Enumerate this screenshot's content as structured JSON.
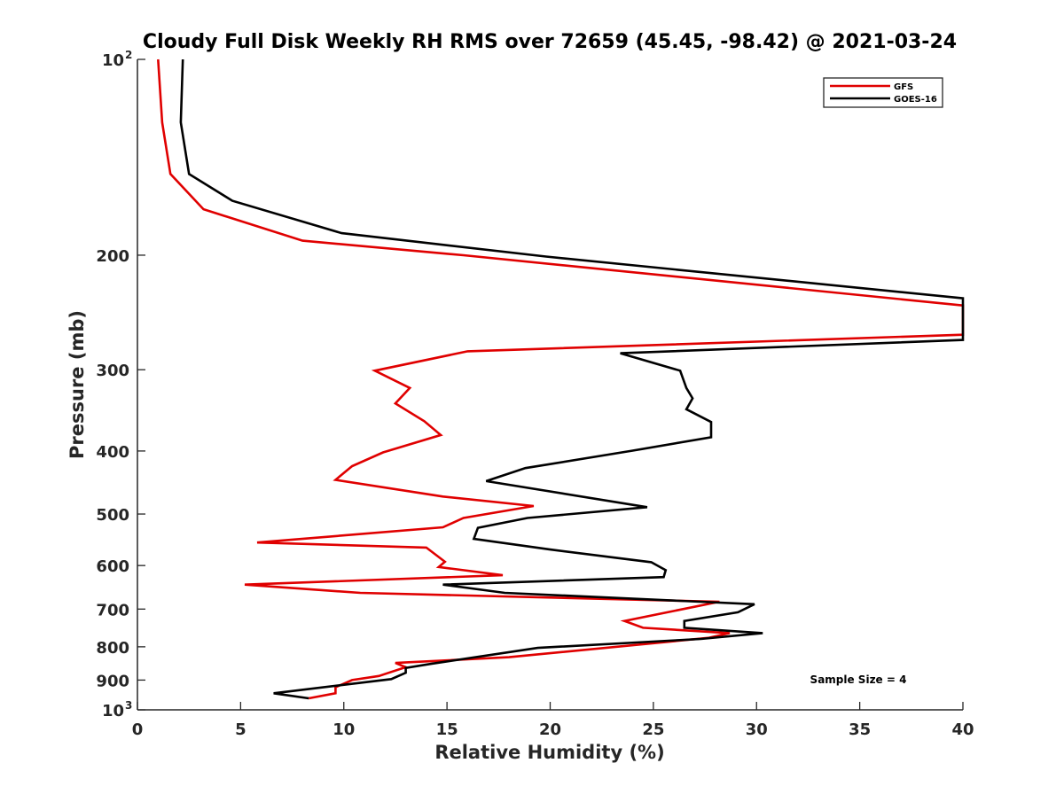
{
  "chart_data": {
    "type": "line",
    "title": "Cloudy Full Disk Weekly RH RMS over 72659 (45.45, -98.42) @ 2021-03-24",
    "xlabel": "Relative Humidity (%)",
    "ylabel": "Pressure (mb)",
    "xlim": [
      0,
      40
    ],
    "ylim": [
      100,
      1000
    ],
    "y_scale": "log",
    "y_reversed": true,
    "grid": false,
    "legend_position": "top-right",
    "x_ticks": [
      {
        "value": 0,
        "label": "0"
      },
      {
        "value": 5,
        "label": "5"
      },
      {
        "value": 10,
        "label": "10"
      },
      {
        "value": 15,
        "label": "15"
      },
      {
        "value": 20,
        "label": "20"
      },
      {
        "value": 25,
        "label": "25"
      },
      {
        "value": 30,
        "label": "30"
      },
      {
        "value": 35,
        "label": "35"
      },
      {
        "value": 40,
        "label": "40"
      }
    ],
    "y_ticks": [
      {
        "value": 100,
        "label": "10",
        "sup": "2"
      },
      {
        "value": 200,
        "label": "200"
      },
      {
        "value": 300,
        "label": "300"
      },
      {
        "value": 400,
        "label": "400"
      },
      {
        "value": 500,
        "label": "500"
      },
      {
        "value": 600,
        "label": "600"
      },
      {
        "value": 700,
        "label": "700"
      },
      {
        "value": 800,
        "label": "800"
      },
      {
        "value": 900,
        "label": "900"
      },
      {
        "value": 1000,
        "label": "10",
        "sup": "3"
      }
    ],
    "series": [
      {
        "name": "GFS",
        "color": "#e00000",
        "points": [
          [
            1.0,
            100
          ],
          [
            1.2,
            125
          ],
          [
            1.6,
            150
          ],
          [
            3.2,
            170
          ],
          [
            8.0,
            190
          ],
          [
            15.8,
            200
          ],
          [
            40.0,
            239
          ],
          [
            40.0,
            265
          ],
          [
            16.0,
            281
          ],
          [
            11.5,
            301
          ],
          [
            13.2,
            320
          ],
          [
            12.5,
            338
          ],
          [
            13.9,
            360
          ],
          [
            14.7,
            378
          ],
          [
            11.9,
            402
          ],
          [
            10.4,
            422
          ],
          [
            9.6,
            443
          ],
          [
            14.8,
            470
          ],
          [
            19.2,
            486
          ],
          [
            15.8,
            507
          ],
          [
            14.8,
            524
          ],
          [
            5.8,
            553
          ],
          [
            14.0,
            563
          ],
          [
            14.9,
            592
          ],
          [
            14.6,
            603
          ],
          [
            17.7,
            621
          ],
          [
            5.2,
            642
          ],
          [
            10.8,
            661
          ],
          [
            28.2,
            682
          ],
          [
            23.6,
            730
          ],
          [
            24.5,
            748
          ],
          [
            28.7,
            762
          ],
          [
            27.7,
            775
          ],
          [
            18.0,
            830
          ],
          [
            12.5,
            847
          ],
          [
            13.0,
            860
          ],
          [
            11.7,
            887
          ],
          [
            10.4,
            900
          ],
          [
            9.6,
            923
          ],
          [
            9.6,
            943
          ],
          [
            8.3,
            960
          ]
        ]
      },
      {
        "name": "GOES-16",
        "color": "#000000",
        "points": [
          [
            2.2,
            100
          ],
          [
            2.1,
            125
          ],
          [
            2.5,
            150
          ],
          [
            4.6,
            165
          ],
          [
            9.9,
            185
          ],
          [
            19.8,
            201
          ],
          [
            40.0,
            233
          ],
          [
            40.0,
            270
          ],
          [
            23.4,
            283
          ],
          [
            26.3,
            301
          ],
          [
            26.6,
            320
          ],
          [
            26.9,
            332
          ],
          [
            26.6,
            345
          ],
          [
            27.8,
            361
          ],
          [
            27.8,
            381
          ],
          [
            23.9,
            400
          ],
          [
            18.8,
            425
          ],
          [
            16.9,
            445
          ],
          [
            24.7,
            488
          ],
          [
            18.9,
            507
          ],
          [
            16.5,
            525
          ],
          [
            16.3,
            546
          ],
          [
            20.0,
            567
          ],
          [
            24.9,
            593
          ],
          [
            25.6,
            610
          ],
          [
            25.5,
            625
          ],
          [
            14.8,
            642
          ],
          [
            17.8,
            661
          ],
          [
            29.9,
            688
          ],
          [
            29.1,
            708
          ],
          [
            26.5,
            730
          ],
          [
            26.5,
            748
          ],
          [
            30.3,
            762
          ],
          [
            27.3,
            778
          ],
          [
            19.4,
            803
          ],
          [
            14.2,
            850
          ],
          [
            13.0,
            862
          ],
          [
            13.0,
            877
          ],
          [
            12.3,
            897
          ],
          [
            6.6,
            943
          ],
          [
            8.3,
            960
          ]
        ]
      }
    ],
    "annotation": "Sample Size = 4"
  }
}
